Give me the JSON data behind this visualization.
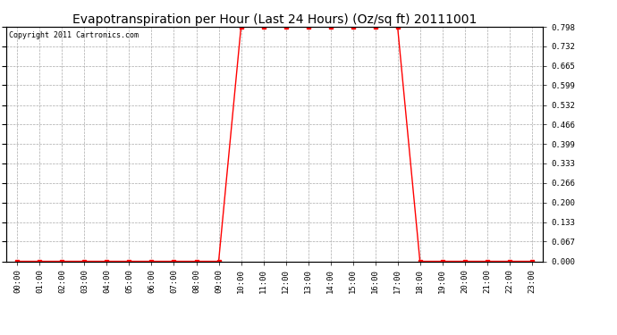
{
  "title": "Evapotranspiration per Hour (Last 24 Hours) (Oz/sq ft) 20111001",
  "copyright": "Copyright 2011 Cartronics.com",
  "x_labels": [
    "00:00",
    "01:00",
    "02:00",
    "03:00",
    "04:00",
    "05:00",
    "06:00",
    "07:00",
    "08:00",
    "09:00",
    "10:00",
    "11:00",
    "12:00",
    "13:00",
    "14:00",
    "15:00",
    "16:00",
    "17:00",
    "18:00",
    "19:00",
    "20:00",
    "21:00",
    "22:00",
    "23:00"
  ],
  "y_values": [
    0.0,
    0.0,
    0.0,
    0.0,
    0.0,
    0.0,
    0.0,
    0.0,
    0.0,
    0.0,
    0.798,
    0.798,
    0.798,
    0.798,
    0.798,
    0.798,
    0.798,
    0.798,
    0.0,
    0.0,
    0.0,
    0.0,
    0.0,
    0.0
  ],
  "y_ticks": [
    0.0,
    0.067,
    0.133,
    0.2,
    0.266,
    0.333,
    0.399,
    0.466,
    0.532,
    0.599,
    0.665,
    0.732,
    0.798
  ],
  "ylim": [
    0.0,
    0.798
  ],
  "line_color": "#ff0000",
  "marker": "s",
  "marker_size": 2.5,
  "bg_color": "#ffffff",
  "grid_color": "#aaaaaa",
  "title_fontsize": 10,
  "copyright_fontsize": 6,
  "tick_fontsize": 6.5
}
